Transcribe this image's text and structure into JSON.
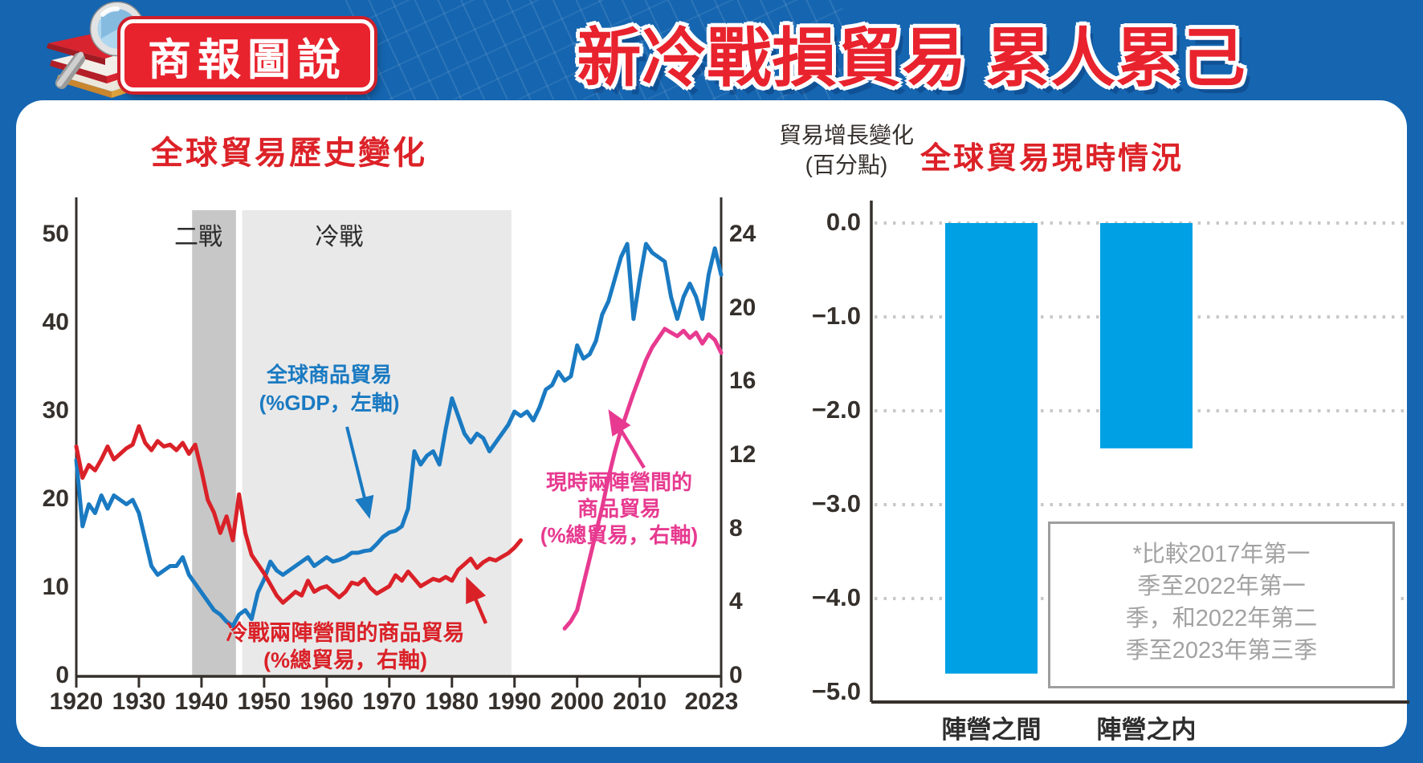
{
  "header": {
    "logo_badge": "商報圖說",
    "title": "新冷戰損貿易 累人累己"
  },
  "left_chart": {
    "title": "全球貿易歷史變化",
    "annotations": {
      "blue_lines": [
        "全球商品貿易",
        "(%GDP，左軸)"
      ],
      "red_lines": [
        "冷戰兩陣營間的商品貿易",
        "(%總貿易，右軸)"
      ],
      "pink_lines": [
        "現時兩陣營間的",
        "商品貿易",
        "(%總貿易，右軸)"
      ]
    }
  },
  "right_chart": {
    "title": "全球貿易現時情況",
    "ylabel_lines": [
      "貿易增長變化",
      "(百分點)"
    ],
    "footnote_lines": [
      "*比較2017年第一",
      "季至2022年第一",
      "季，和2022年第二",
      "季至2023年第三季"
    ]
  },
  "chart_data": [
    {
      "type": "line",
      "title": "全球貿易歷史變化",
      "x_ticks": [
        1920,
        1930,
        1940,
        1950,
        1960,
        1970,
        1980,
        1990,
        2000,
        2010,
        2023
      ],
      "y_left": {
        "label": "%GDP",
        "ticks": [
          0,
          10,
          20,
          30,
          40,
          50
        ],
        "range": [
          0,
          56
        ]
      },
      "y_right": {
        "label": "%總貿易",
        "ticks": [
          0,
          4,
          8,
          12,
          16,
          20,
          24
        ],
        "range": [
          0,
          24
        ]
      },
      "grid": false,
      "era_bands": [
        {
          "label": "二戰",
          "x_from": 1938.5,
          "x_to": 1945.5,
          "label_x": 1939.5,
          "color": "#c7c7c7"
        },
        {
          "label": "冷戰",
          "x_from": 1946.5,
          "x_to": 1989.5,
          "label_x": 1962,
          "color": "#e9e9e9"
        }
      ],
      "series": [
        {
          "name": "全球商品貿易(%GDP，左軸)",
          "axis": "left",
          "color": "#1a7ac2",
          "x_start": 1920,
          "values": [
            24.5,
            17,
            19.5,
            18.5,
            20.5,
            19,
            20.5,
            20,
            19.5,
            20,
            18.5,
            15.5,
            12.5,
            11.5,
            12,
            12.5,
            12.5,
            13.5,
            11.5,
            10.5,
            9.5,
            8.5,
            7.5,
            7,
            6.2,
            5.7,
            7,
            7.5,
            6.5,
            9.5,
            11,
            13,
            12,
            11.5,
            12,
            12.5,
            13,
            13.5,
            12.5,
            13,
            13.5,
            13,
            13.2,
            13.5,
            14,
            14,
            14.2,
            14.3,
            15,
            15.8,
            16.3,
            16.5,
            17,
            19,
            25.5,
            24,
            25,
            25.5,
            24,
            28,
            31.5,
            29.5,
            27.5,
            26.5,
            27.5,
            27,
            25.5,
            26.5,
            27.5,
            28.5,
            30,
            29.5,
            30,
            29,
            30.5,
            32.5,
            33,
            34.5,
            33.5,
            34,
            37.5,
            36,
            36.5,
            38,
            41,
            42.5,
            45,
            47.5,
            49,
            40.5,
            45,
            49,
            48,
            47.5,
            47,
            43,
            40.5,
            43,
            44.5,
            43,
            40.5,
            45.5,
            48.5,
            45.5
          ]
        },
        {
          "name": "冷戰兩陣營間的商品貿易(%總貿易，右軸)",
          "axis": "right",
          "color": "#da2128",
          "x_start": 1920,
          "values": [
            12.5,
            10.8,
            11.5,
            11.2,
            11.8,
            12.5,
            11.8,
            12.1,
            12.4,
            12.6,
            13.6,
            12.7,
            12.3,
            12.8,
            12.5,
            12.6,
            12.3,
            12.7,
            12.1,
            12.6,
            11.2,
            9.6,
            8.9,
            7.8,
            8.7,
            7.4,
            9.9,
            7.8,
            6.6,
            6.1,
            5.6,
            5.0,
            4.4,
            4.0,
            4.3,
            4.6,
            4.4,
            5.2,
            4.6,
            4.8,
            4.9,
            4.6,
            4.3,
            4.6,
            5.1,
            5.0,
            5.3,
            4.8,
            4.5,
            4.7,
            4.9,
            5.5,
            5.2,
            5.7,
            5.3,
            4.9,
            5.1,
            5.3,
            5.2,
            5.4,
            5.2,
            5.8,
            6.1,
            6.4,
            5.9,
            6.2,
            6.4,
            6.3,
            6.5,
            6.7,
            7.0,
            7.4
          ]
        },
        {
          "name": "現時兩陣營間的商品貿易(%總貿易，右軸)",
          "axis": "right",
          "color": "#e73a90",
          "x_start": 1998,
          "values": [
            2.6,
            3.0,
            3.6,
            5.0,
            6.4,
            7.8,
            9.2,
            10.8,
            12.2,
            13.4,
            14.4,
            15.4,
            16.3,
            17.2,
            17.9,
            18.4,
            18.9,
            18.7,
            18.5,
            18.8,
            18.4,
            18.7,
            18.1,
            18.6,
            18.3,
            17.6
          ]
        }
      ]
    },
    {
      "type": "bar",
      "title": "全球貿易現時情況",
      "ylabel": "貿易增長變化(百分點)",
      "categories": [
        "陣營之間",
        "陣營之内"
      ],
      "values": [
        -4.8,
        -2.4
      ],
      "y_tick_labels": [
        "0.0",
        "−1.0",
        "−2.0",
        "−3.0",
        "−4.0",
        "−5.0"
      ],
      "ylim": [
        -5.0,
        0.0
      ],
      "grid": "dotted horizontal",
      "bar_color": "#00a0e4",
      "footnote": "*比較2017年第一季至2022年第一季，和2022年第二季至2023年第三季"
    }
  ],
  "colors": {
    "frame_blue": "#1565b0",
    "title_red": "#e8232e",
    "chart_title_red": "#dc2228",
    "blue_line": "#1a7ac2",
    "red_line": "#da2128",
    "pink_line": "#e73a90",
    "bar_cyan": "#00a0e4",
    "band_dark": "#c7c7c7",
    "band_light": "#e9e9e9"
  }
}
